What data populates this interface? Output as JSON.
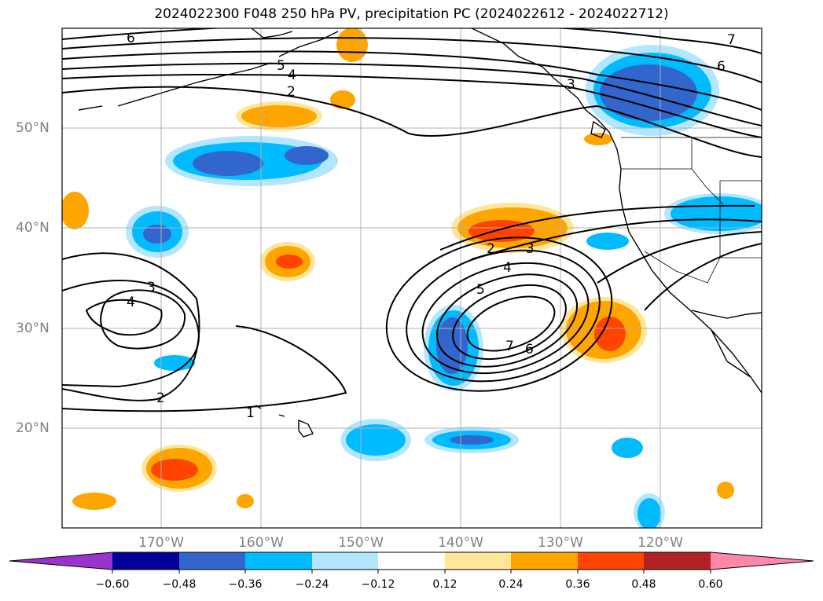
{
  "title": "2024022300 F048 250 hPa PV, precipitation PC (2024022612 - 2024022712)",
  "map": {
    "lat_labels": [
      "50°N",
      "40°N",
      "30°N",
      "20°N"
    ],
    "lon_labels": [
      "170°W",
      "160°W",
      "150°W",
      "140°W",
      "130°W",
      "120°W"
    ],
    "contour_labels": [
      "6",
      "7",
      "6",
      "5",
      "4",
      "2",
      "3",
      "3",
      "4",
      "2",
      "3",
      "5",
      "4",
      "7",
      "6",
      "2",
      "1"
    ],
    "coastline_color": "#000000",
    "grid_color": "#b0b0b0"
  },
  "colorbar": {
    "extend": "both",
    "colors": [
      "#9933cc",
      "#000099",
      "#3366cc",
      "#00bbff",
      "#b3e6ff",
      "#ffffff",
      "#ffe699",
      "#ffa500",
      "#ff4400",
      "#b22222",
      "#ff88aa"
    ],
    "tick_labels": [
      "−0.60",
      "−0.48",
      "−0.36",
      "−0.24",
      "−0.12",
      "0.12",
      "0.24",
      "0.36",
      "0.48",
      "0.60"
    ]
  }
}
